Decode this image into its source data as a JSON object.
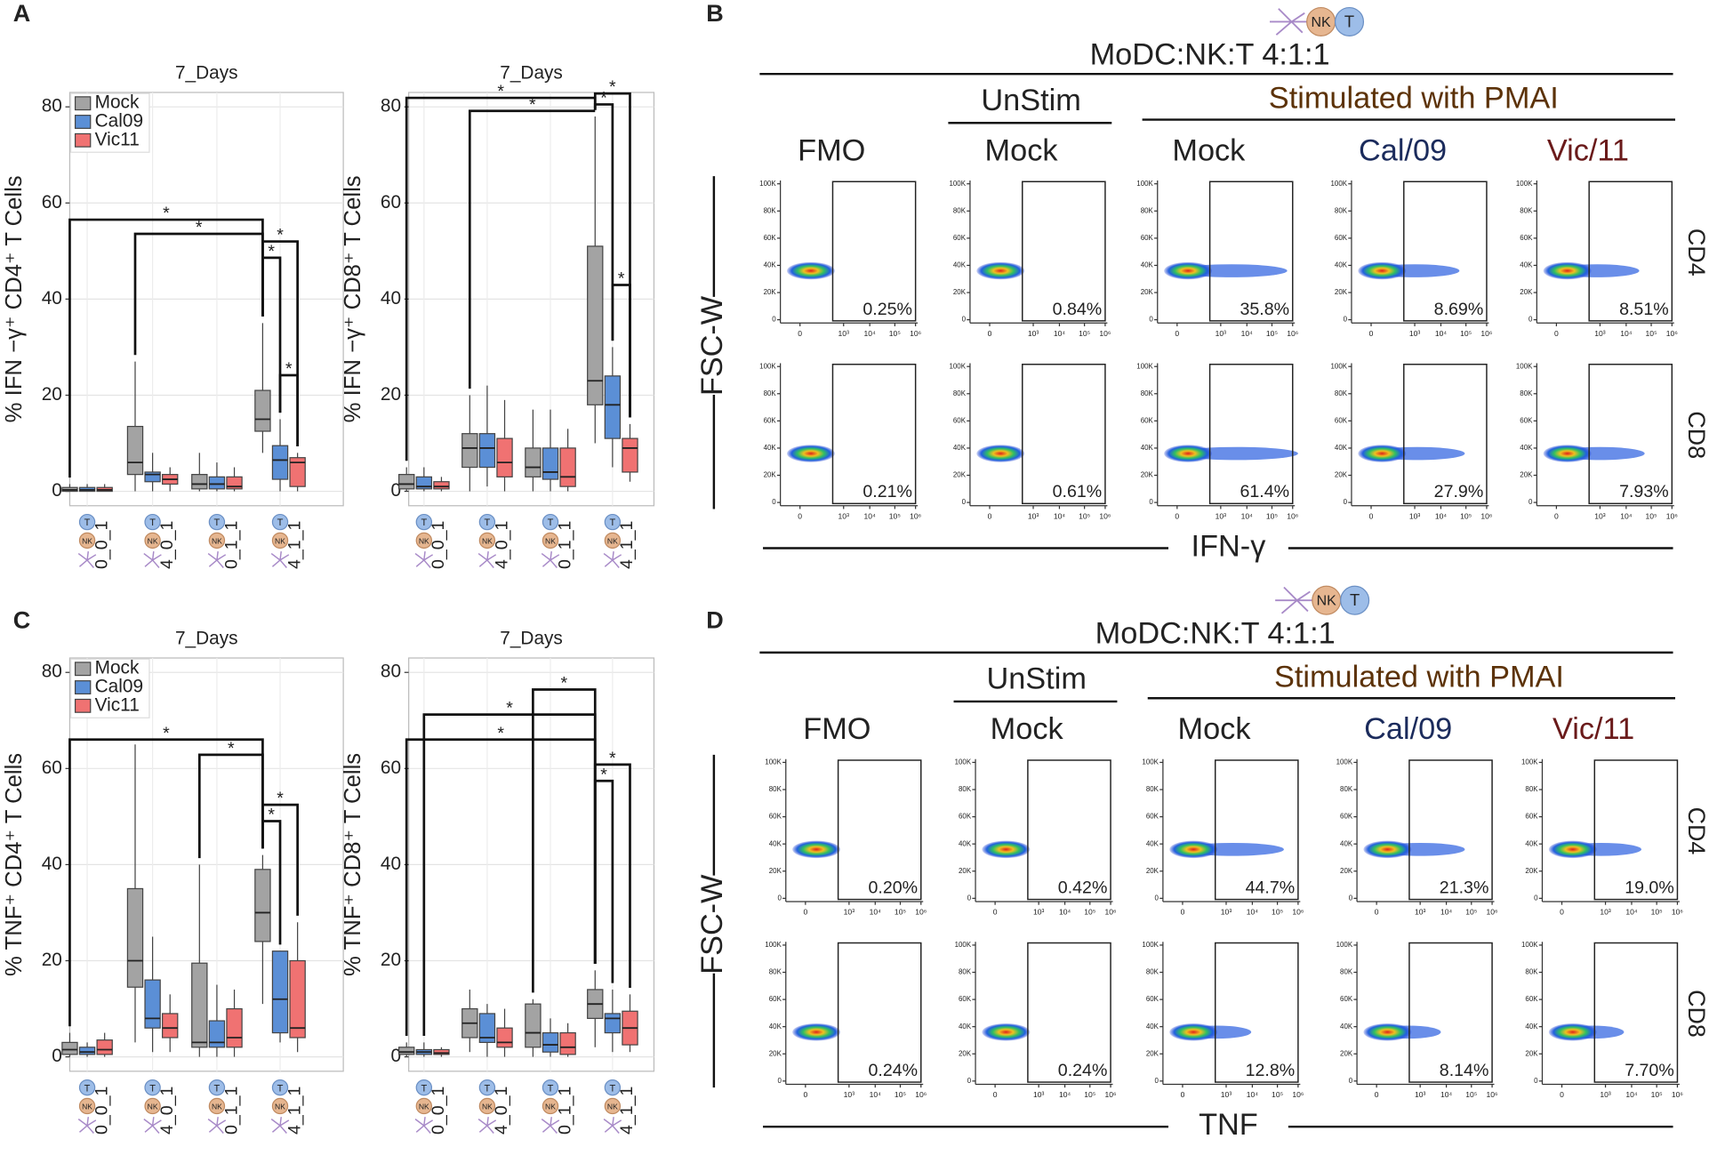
{
  "panels": [
    "A",
    "B",
    "C",
    "D"
  ],
  "cell_icons": {
    "t": "T",
    "nk": "NK"
  },
  "chart_data": [
    {
      "type": "box",
      "title": "7_Days",
      "ylabel": "% IFN −γ⁺ CD4⁺ T Cells",
      "categories": [
        "0_0_1",
        "4_0_1",
        "0_1_1",
        "4_1_1"
      ],
      "series": [
        {
          "name": "Mock",
          "color": "#a3a3a3",
          "boxes": [
            {
              "low": 0,
              "q1": 0,
              "median": 0.3,
              "q3": 0.8,
              "high": 1.5
            },
            {
              "low": 0,
              "q1": 3.5,
              "median": 6,
              "q3": 13.5,
              "high": 27
            },
            {
              "low": 0,
              "q1": 0.5,
              "median": 1.5,
              "q3": 3.5,
              "high": 8
            },
            {
              "low": 8,
              "q1": 12.5,
              "median": 15,
              "q3": 21,
              "high": 35
            }
          ]
        },
        {
          "name": "Cal09",
          "color": "#5b8fd6",
          "boxes": [
            {
              "low": 0,
              "q1": 0,
              "median": 0.3,
              "q3": 0.8,
              "high": 1.5
            },
            {
              "low": 0,
              "q1": 2,
              "median": 3.5,
              "q3": 4,
              "high": 8
            },
            {
              "low": 0,
              "q1": 0.5,
              "median": 1.5,
              "q3": 3,
              "high": 6
            },
            {
              "low": 0,
              "q1": 2.5,
              "median": 6.5,
              "q3": 9.5,
              "high": 15
            }
          ]
        },
        {
          "name": "Vic11",
          "color": "#f07272",
          "boxes": [
            {
              "low": 0,
              "q1": 0,
              "median": 0.3,
              "q3": 0.8,
              "high": 1.5
            },
            {
              "low": 0,
              "q1": 1.5,
              "median": 2.5,
              "q3": 3.5,
              "high": 5
            },
            {
              "low": 0,
              "q1": 0.5,
              "median": 1,
              "q3": 3,
              "high": 5
            },
            {
              "low": 0,
              "q1": 1,
              "median": 6,
              "q3": 7,
              "high": 8
            }
          ]
        }
      ],
      "ylim": [
        -3,
        83
      ],
      "yticks": [
        0,
        20,
        40,
        60,
        80
      ],
      "grid": true,
      "legend": "top-left",
      "annotations": [
        "*",
        "*",
        "*",
        "*",
        "*"
      ]
    },
    {
      "type": "box",
      "title": "7_Days",
      "ylabel": "% IFN −γ⁺ CD8⁺ T Cells",
      "categories": [
        "0_0_1",
        "4_0_1",
        "0_1_1",
        "4_1_1"
      ],
      "series": [
        {
          "color": "#a3a3a3",
          "boxes": [
            {
              "low": 0,
              "q1": 0.5,
              "median": 1.5,
              "q3": 3.5,
              "high": 5
            },
            {
              "low": 0,
              "q1": 5,
              "median": 9,
              "q3": 12,
              "high": 20
            },
            {
              "low": 0,
              "q1": 3,
              "median": 5,
              "q3": 9,
              "high": 17
            },
            {
              "low": 10,
              "q1": 18,
              "median": 23,
              "q3": 51,
              "high": 78
            }
          ]
        },
        {
          "color": "#5b8fd6",
          "boxes": [
            {
              "low": 0,
              "q1": 0.5,
              "median": 1,
              "q3": 3,
              "high": 5
            },
            {
              "low": 1,
              "q1": 5,
              "median": 9,
              "q3": 12,
              "high": 22
            },
            {
              "low": 0,
              "q1": 2.5,
              "median": 4,
              "q3": 9,
              "high": 17
            },
            {
              "low": 5,
              "q1": 11,
              "median": 18,
              "q3": 24,
              "high": 30
            }
          ]
        },
        {
          "color": "#f07272",
          "boxes": [
            {
              "low": 0,
              "q1": 0.5,
              "median": 1,
              "q3": 2,
              "high": 3
            },
            {
              "low": 0,
              "q1": 3,
              "median": 6,
              "q3": 11,
              "high": 19
            },
            {
              "low": 0,
              "q1": 1,
              "median": 3,
              "q3": 9,
              "high": 13
            },
            {
              "low": 2,
              "q1": 4,
              "median": 9,
              "q3": 11,
              "high": 14
            }
          ]
        }
      ],
      "ylim": [
        -3,
        83
      ],
      "yticks": [
        0,
        20,
        40,
        60,
        80
      ],
      "grid": true,
      "annotations": [
        "*",
        "*",
        "*",
        "*",
        "*"
      ]
    },
    {
      "type": "box",
      "title": "7_Days",
      "ylabel": "% TNF⁺ CD4⁺ T Cells",
      "categories": [
        "0_0_1",
        "4_0_1",
        "0_1_1",
        "4_1_1"
      ],
      "series": [
        {
          "name": "Mock",
          "color": "#a3a3a3",
          "boxes": [
            {
              "low": 0,
              "q1": 0.5,
              "median": 1.5,
              "q3": 3,
              "high": 5
            },
            {
              "low": 3,
              "q1": 14.5,
              "median": 20,
              "q3": 35,
              "high": 65
            },
            {
              "low": 0,
              "q1": 2,
              "median": 3,
              "q3": 19.5,
              "high": 40
            },
            {
              "low": 11,
              "q1": 24,
              "median": 30,
              "q3": 39,
              "high": 42
            }
          ]
        },
        {
          "name": "Cal09",
          "color": "#5b8fd6",
          "boxes": [
            {
              "low": 0,
              "q1": 0.5,
              "median": 1,
              "q3": 2,
              "high": 3
            },
            {
              "low": 1,
              "q1": 6,
              "median": 8,
              "q3": 16,
              "high": 25
            },
            {
              "low": 0,
              "q1": 2,
              "median": 3,
              "q3": 7.5,
              "high": 15
            },
            {
              "low": 3,
              "q1": 5,
              "median": 12,
              "q3": 22,
              "high": 22
            }
          ]
        },
        {
          "name": "Vic11",
          "color": "#f07272",
          "boxes": [
            {
              "low": 0,
              "q1": 0.5,
              "median": 1.5,
              "q3": 3.5,
              "high": 5
            },
            {
              "low": 1,
              "q1": 4,
              "median": 6,
              "q3": 9,
              "high": 13
            },
            {
              "low": 0,
              "q1": 2,
              "median": 4,
              "q3": 10,
              "high": 14
            },
            {
              "low": 1,
              "q1": 4,
              "median": 6,
              "q3": 20,
              "high": 28
            }
          ]
        }
      ],
      "ylim": [
        -3,
        83
      ],
      "yticks": [
        0,
        20,
        40,
        60,
        80
      ],
      "grid": true,
      "legend": "top-left",
      "annotations": [
        "*",
        "*",
        "*",
        "*"
      ]
    },
    {
      "type": "box",
      "title": "7_Days",
      "ylabel": "% TNF⁺ CD8⁺ T Cells",
      "categories": [
        "0_0_1",
        "4_0_1",
        "0_1_1",
        "4_1_1"
      ],
      "series": [
        {
          "color": "#a3a3a3",
          "boxes": [
            {
              "low": 0,
              "q1": 0.5,
              "median": 1,
              "q3": 2,
              "high": 3
            },
            {
              "low": 1,
              "q1": 4,
              "median": 7,
              "q3": 10,
              "high": 14
            },
            {
              "low": 0,
              "q1": 2,
              "median": 5,
              "q3": 11,
              "high": 12
            },
            {
              "low": 2,
              "q1": 8,
              "median": 11,
              "q3": 14,
              "high": 18
            }
          ]
        },
        {
          "color": "#5b8fd6",
          "boxes": [
            {
              "low": 0,
              "q1": 0.5,
              "median": 1,
              "q3": 1.5,
              "high": 3
            },
            {
              "low": 0,
              "q1": 3,
              "median": 4,
              "q3": 9,
              "high": 11
            },
            {
              "low": 0,
              "q1": 1,
              "median": 2.5,
              "q3": 5,
              "high": 8
            },
            {
              "low": 1,
              "q1": 5,
              "median": 8,
              "q3": 9,
              "high": 14
            }
          ]
        },
        {
          "color": "#f07272",
          "boxes": [
            {
              "low": 0,
              "q1": 0.5,
              "median": 0.8,
              "q3": 1.5,
              "high": 2
            },
            {
              "low": 0,
              "q1": 2,
              "median": 3,
              "q3": 6,
              "high": 10
            },
            {
              "low": 0,
              "q1": 0.5,
              "median": 2,
              "q3": 5,
              "high": 7
            },
            {
              "low": 1,
              "q1": 2.5,
              "median": 6,
              "q3": 9.5,
              "high": 13
            }
          ]
        }
      ],
      "ylim": [
        -3,
        83
      ],
      "yticks": [
        0,
        20,
        40,
        60,
        80
      ],
      "grid": true,
      "annotations": [
        "*",
        "*",
        "*",
        "*",
        "*"
      ]
    }
  ],
  "flow": [
    {
      "ratio": "MoDC:NK:T 4:1:1",
      "groups": [
        "UnStim",
        "Stimulated with PMAI"
      ],
      "columns": [
        "FMO",
        "Mock",
        "Mock",
        "Cal/09",
        "Vic/11"
      ],
      "rows": [
        "CD4",
        "CD8"
      ],
      "ylabel": "FSC-W",
      "xlabel": "IFN-γ",
      "yticks": [
        "0",
        "20K",
        "40K",
        "60K",
        "80K",
        "100K"
      ],
      "xticks": [
        "0",
        "10³",
        "10⁴",
        "10⁵",
        "10⁶"
      ],
      "gates": [
        [
          "0.25%",
          "0.84%",
          "35.8%",
          "8.69%",
          "8.51%"
        ],
        [
          "0.21%",
          "0.61%",
          "61.4%",
          "27.9%",
          "7.93%"
        ]
      ]
    },
    {
      "ratio": "MoDC:NK:T 4:1:1",
      "groups": [
        "UnStim",
        "Stimulated with PMAI"
      ],
      "columns": [
        "FMO",
        "Mock",
        "Mock",
        "Cal/09",
        "Vic/11"
      ],
      "rows": [
        "CD4",
        "CD8"
      ],
      "ylabel": "FSC-W",
      "xlabel": "TNF",
      "yticks": [
        "0",
        "20K",
        "40K",
        "60K",
        "80K",
        "100K"
      ],
      "xticks": [
        "0",
        "10³",
        "10⁴",
        "10⁵",
        "10⁶"
      ],
      "gates": [
        [
          "0.20%",
          "0.42%",
          "44.7%",
          "21.3%",
          "19.0%"
        ],
        [
          "0.24%",
          "0.24%",
          "12.8%",
          "8.14%",
          "7.70%"
        ]
      ]
    }
  ]
}
